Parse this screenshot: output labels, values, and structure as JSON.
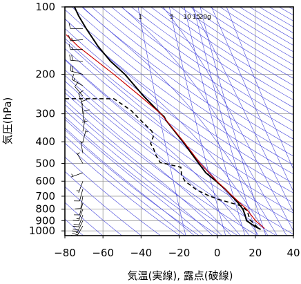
{
  "colors": {
    "gridline": "#9a9a9a",
    "adiabat": "#4646dc",
    "frame": "#000000"
  },
  "chart_data": {
    "type": "line",
    "xlabel": "気温(実線), 露点(破線)",
    "ylabel": "気圧(hPa)",
    "xlim": [
      -80,
      40
    ],
    "ylim": [
      1050,
      100
    ],
    "yscale": "log",
    "grid": true,
    "xticks": [
      -80,
      -60,
      -40,
      -20,
      0,
      20,
      40
    ],
    "xtick_labels": [
      "−80",
      "−60",
      "−40",
      "−20",
      "0",
      "20",
      "40"
    ],
    "yticks": [
      100,
      200,
      300,
      400,
      500,
      600,
      700,
      800,
      900,
      1000
    ],
    "ytick_labels": [
      "100",
      "200",
      "300",
      "400",
      "500",
      "600",
      "700",
      "800",
      "900",
      "1000"
    ],
    "series": [
      {
        "style": "solid",
        "color": "#000000",
        "x": [
          -75,
          -72.7,
          -68.8,
          -62.6,
          -56,
          -48.5,
          -38.7,
          -29.6,
          -27.8,
          -27,
          -23.4,
          -18,
          -13.6,
          -9.7,
          -6,
          -0.6,
          4.1,
          7.7,
          11,
          13.5,
          14.6,
          15.4,
          19.3,
          22.8
        ],
        "y": [
          100,
          110,
          125,
          150,
          175,
          200,
          250,
          300,
          310,
          320,
          350,
          400,
          450,
          500,
          550,
          600,
          650,
          700,
          750,
          800,
          850,
          900,
          950,
          985
        ]
      },
      {
        "style": "dashed",
        "color": "#000000",
        "x": [
          -80,
          -54.3,
          -45.2,
          -39.8,
          -34.3,
          -33.6,
          -35,
          -33.6,
          -32.1,
          -30,
          -25.3,
          -19.1,
          -18.7,
          -16.9,
          -10.7,
          -5.3,
          0.1,
          9.2,
          12.8,
          15.7,
          17.2,
          20.8,
          22.2
        ],
        "y": [
          257,
          257,
          290,
          323,
          359,
          380,
          408,
          426,
          461,
          495,
          505,
          520,
          566,
          600,
          657,
          691,
          721,
          758,
          774,
          814,
          892,
          958,
          985
        ]
      },
      {
        "style": "solid",
        "color": "#cc0000",
        "x": [
          -79.3,
          -73.1,
          -54.3,
          -40.5,
          -29.6,
          -17.6,
          -8.9,
          -0.2,
          8.1,
          15.4,
          20.1,
          24.8
        ],
        "y": [
          133,
          150,
          200,
          250,
          300,
          400,
          500,
          600,
          700,
          800,
          900,
          975
        ]
      }
    ],
    "mixing_ratio": {
      "values": [
        1,
        5,
        10,
        15,
        20
      ],
      "labels": [
        "1",
        "5",
        "10",
        "15",
        "20g"
      ]
    },
    "wind_barbs": [
      {
        "p": 125,
        "dir": 270,
        "kt": 10
      },
      {
        "p": 140,
        "dir": 265,
        "kt": 15
      },
      {
        "p": 155,
        "dir": 270,
        "kt": 15
      },
      {
        "p": 175,
        "dir": 275,
        "kt": 20
      },
      {
        "p": 200,
        "dir": 285,
        "kt": 20
      },
      {
        "p": 225,
        "dir": 300,
        "kt": 15
      },
      {
        "p": 250,
        "dir": 320,
        "kt": 10
      },
      {
        "p": 275,
        "dir": 340,
        "kt": 10
      },
      {
        "p": 300,
        "dir": 355,
        "kt": 10
      },
      {
        "p": 330,
        "dir": 5,
        "kt": 10
      },
      {
        "p": 360,
        "dir": 10,
        "kt": 5
      },
      {
        "p": 400,
        "dir": 15,
        "kt": 5
      },
      {
        "p": 450,
        "dir": 350,
        "kt": 5
      },
      {
        "p": 500,
        "dir": 330,
        "kt": 5
      },
      {
        "p": 550,
        "dir": 250,
        "kt": 5
      },
      {
        "p": 600,
        "dir": 200,
        "kt": 5
      },
      {
        "p": 650,
        "dir": 195,
        "kt": 10
      },
      {
        "p": 700,
        "dir": 190,
        "kt": 10
      },
      {
        "p": 750,
        "dir": 195,
        "kt": 10
      },
      {
        "p": 800,
        "dir": 200,
        "kt": 15
      },
      {
        "p": 850,
        "dir": 200,
        "kt": 20
      },
      {
        "p": 900,
        "dir": 205,
        "kt": 20
      },
      {
        "p": 950,
        "dir": 210,
        "kt": 25
      }
    ]
  }
}
